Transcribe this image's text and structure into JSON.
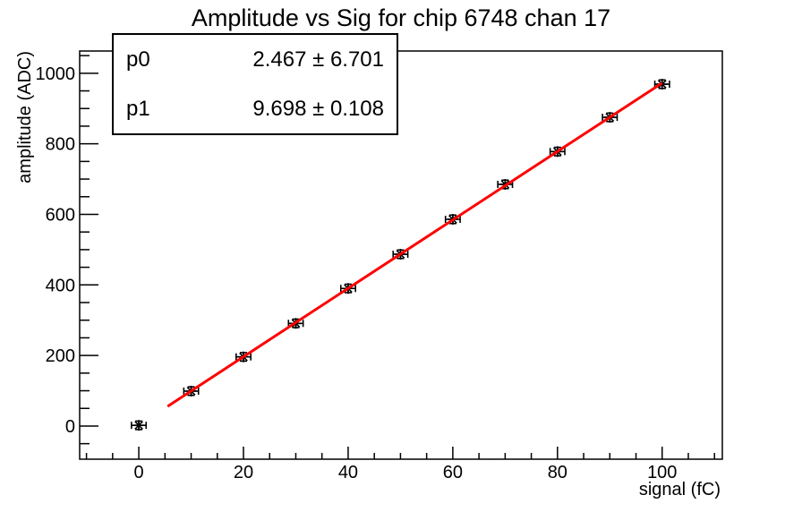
{
  "chart_data": {
    "type": "scatter",
    "title": "Amplitude vs Sig for chip 6748 chan 17",
    "xlabel": "signal (fC)",
    "ylabel": "amplitude (ADC)",
    "xlim": [
      -11.3,
      111.5
    ],
    "ylim": [
      -94,
      1063
    ],
    "grid": false,
    "legend_position": "none",
    "x_major_ticks": [
      0,
      20,
      40,
      60,
      80,
      100
    ],
    "x_minor_step": 5,
    "y_major_ticks": [
      0,
      200,
      400,
      600,
      800,
      1000
    ],
    "y_minor_step": 50,
    "points": {
      "x": [
        0,
        10,
        20,
        30,
        40,
        50,
        60,
        70,
        80,
        90,
        100
      ],
      "y": [
        2,
        99,
        196,
        291,
        390,
        487,
        586,
        685,
        778,
        875,
        969
      ],
      "x_err": 1.4,
      "y_err": 12
    },
    "fit": {
      "p0": 2.467,
      "p1": 9.698,
      "x_range": [
        5.5,
        100
      ],
      "color": "#ff0000",
      "label_p0": "p0",
      "value_p0": "2.467 ± 6.701",
      "label_p1": "p1",
      "value_p1": "9.698 ± 0.108"
    },
    "marker": {
      "style": "asterisk",
      "color": "#000000"
    },
    "frame_color": "#000000",
    "background_color": "#ffffff"
  }
}
